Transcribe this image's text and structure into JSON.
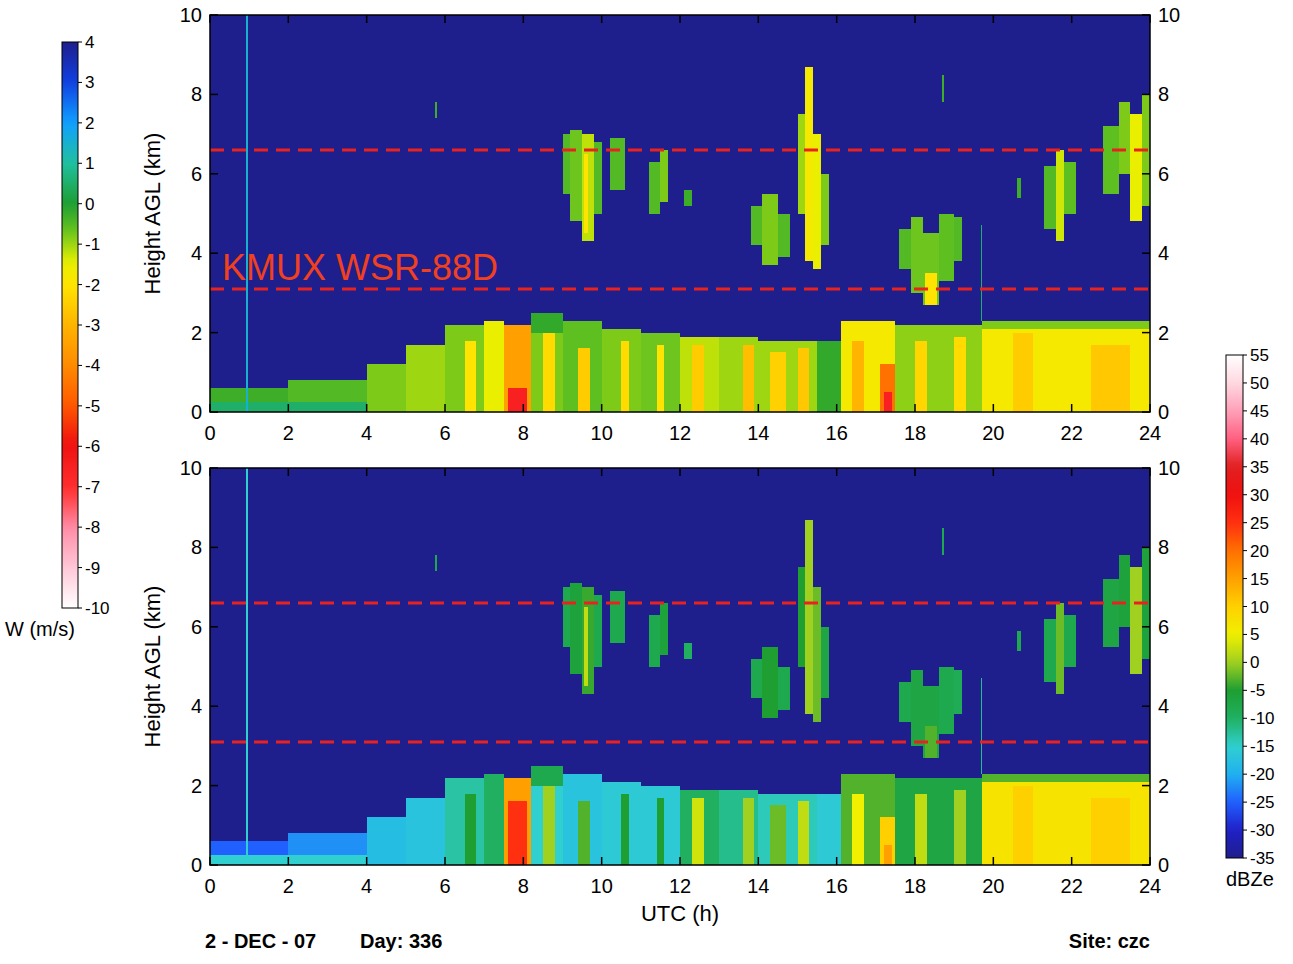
{
  "chart_data": [
    {
      "type": "heatmap",
      "ylabel": "Height AGL (km)",
      "xlim": [
        0,
        24
      ],
      "xticks": [
        0,
        2,
        4,
        6,
        8,
        10,
        12,
        14,
        16,
        18,
        20,
        22,
        24
      ],
      "ylim": [
        0,
        10
      ],
      "yticks": [
        0,
        2,
        4,
        6,
        8,
        10
      ],
      "annotations": [
        "KMUX WSR-88D"
      ],
      "reference_lines": [
        3.1,
        6.6
      ],
      "colorbar": {
        "label": "W (m/s)",
        "range": [
          -10,
          4
        ],
        "ticks": [
          4,
          3,
          2,
          1,
          0,
          -1,
          -2,
          -3,
          -4,
          -5,
          -6,
          -7,
          -8,
          -9,
          -10
        ]
      },
      "cells": [
        [
          0,
          4,
          0,
          0.25,
          0.5
        ],
        [
          0,
          2,
          0.25,
          0.6,
          -0.3
        ],
        [
          2,
          4,
          0.25,
          0.8,
          -0.5
        ],
        [
          4,
          5,
          0,
          1.2,
          -0.8
        ],
        [
          5,
          6,
          0,
          1.7,
          -1.0
        ],
        [
          6,
          7,
          0,
          2.2,
          -0.8
        ],
        [
          6.5,
          6.8,
          0,
          1.8,
          -2.0
        ],
        [
          7,
          7.5,
          0,
          2.3,
          -1.5
        ],
        [
          7.5,
          8.2,
          0,
          2.2,
          -3.5
        ],
        [
          7.6,
          8.1,
          0,
          0.6,
          -6.5
        ],
        [
          8.2,
          9,
          0,
          2.5,
          -0.8
        ],
        [
          8.2,
          9,
          2.0,
          2.5,
          -0.2
        ],
        [
          8.5,
          8.8,
          0,
          2.0,
          -2.2
        ],
        [
          9,
          10,
          0,
          2.3,
          -0.6
        ],
        [
          9.4,
          9.7,
          0,
          1.6,
          -2.5
        ],
        [
          10,
          11,
          0,
          2.1,
          -0.8
        ],
        [
          10.5,
          10.7,
          0,
          1.8,
          -2.2
        ],
        [
          11,
          12,
          0,
          2.0,
          -0.7
        ],
        [
          11.4,
          11.6,
          0,
          1.7,
          -2.0
        ],
        [
          12,
          13,
          0,
          1.9,
          -1.2
        ],
        [
          12.3,
          12.6,
          0,
          1.7,
          -2.5
        ],
        [
          13,
          14,
          0,
          1.9,
          -1.0
        ],
        [
          13.6,
          13.9,
          0,
          1.7,
          -2.8
        ],
        [
          14,
          15.5,
          0,
          1.8,
          -1.0
        ],
        [
          14.3,
          14.7,
          0,
          1.5,
          -2.4
        ],
        [
          15,
          15.3,
          0,
          1.6,
          -2.6
        ],
        [
          15.5,
          16.1,
          0,
          1.8,
          -0.2
        ],
        [
          16.1,
          17.5,
          0,
          2.3,
          -1.8
        ],
        [
          16.4,
          16.7,
          0,
          1.8,
          -3.0
        ],
        [
          17.1,
          17.5,
          0,
          1.2,
          -4.5
        ],
        [
          17.2,
          17.4,
          0,
          0.5,
          -6.5
        ],
        [
          17.5,
          19.7,
          0,
          2.2,
          -0.9
        ],
        [
          18,
          18.3,
          0,
          1.8,
          -2.3
        ],
        [
          19,
          19.3,
          0,
          1.9,
          -2.2
        ],
        [
          19.7,
          24,
          0,
          2.3,
          -1.8
        ],
        [
          20.5,
          21,
          0,
          2.0,
          -2.5
        ],
        [
          22.5,
          23.5,
          0,
          1.7,
          -2.6
        ],
        [
          19.7,
          24,
          2.1,
          2.3,
          -0.8
        ],
        [
          9,
          9.2,
          5.5,
          7.0,
          -0.5
        ],
        [
          9.2,
          9.5,
          4.8,
          7.1,
          -0.7
        ],
        [
          9.5,
          9.8,
          4.3,
          7.0,
          -1.2
        ],
        [
          9.8,
          10.0,
          5.0,
          6.8,
          -0.5
        ],
        [
          9.55,
          9.65,
          4.5,
          6.5,
          -2.0
        ],
        [
          10.2,
          10.6,
          5.6,
          6.9,
          -0.5
        ],
        [
          11.2,
          11.5,
          5.0,
          6.3,
          -0.5
        ],
        [
          11.5,
          11.7,
          5.3,
          6.6,
          -0.8
        ],
        [
          12.1,
          12.3,
          5.2,
          5.6,
          -0.3
        ],
        [
          13.8,
          14.1,
          4.2,
          5.2,
          -0.5
        ],
        [
          14.1,
          14.5,
          3.7,
          5.5,
          -0.8
        ],
        [
          14.5,
          14.8,
          3.9,
          5.0,
          -0.5
        ],
        [
          15,
          15.2,
          5.0,
          7.5,
          -1.0
        ],
        [
          15.2,
          15.4,
          3.8,
          8.7,
          -1.8
        ],
        [
          15.4,
          15.6,
          3.6,
          7.0,
          -1.5
        ],
        [
          15.6,
          15.8,
          4.2,
          6.0,
          -0.8
        ],
        [
          17.6,
          17.9,
          3.6,
          4.6,
          -0.5
        ],
        [
          17.9,
          18.2,
          3.0,
          4.9,
          -0.7
        ],
        [
          18.2,
          18.6,
          2.7,
          4.5,
          -0.7
        ],
        [
          18.6,
          19.0,
          3.3,
          5.0,
          -0.6
        ],
        [
          19.0,
          19.2,
          3.8,
          4.9,
          -0.5
        ],
        [
          18.25,
          18.55,
          2.7,
          3.5,
          -2.0
        ],
        [
          21.3,
          21.6,
          4.6,
          6.2,
          -0.5
        ],
        [
          21.6,
          21.8,
          4.3,
          6.6,
          -1.3
        ],
        [
          21.8,
          22.1,
          5.0,
          6.3,
          -0.6
        ],
        [
          22.8,
          23.2,
          5.5,
          7.2,
          -0.6
        ],
        [
          23.2,
          23.5,
          6.0,
          7.8,
          -0.8
        ],
        [
          23.5,
          23.8,
          4.8,
          7.5,
          -1.5
        ],
        [
          23.8,
          24,
          5.2,
          8.0,
          -0.8
        ],
        [
          5.75,
          5.8,
          7.4,
          7.8,
          -0.3
        ],
        [
          18.7,
          18.75,
          7.8,
          8.5,
          -0.3
        ],
        [
          20.6,
          20.7,
          5.4,
          5.9,
          -0.3
        ],
        [
          19.68,
          19.72,
          2.3,
          4.7,
          0.5
        ],
        [
          0.93,
          0.97,
          0,
          10,
          1.5
        ]
      ]
    },
    {
      "type": "heatmap",
      "ylabel": "Height AGL (km)",
      "xlabel": "UTC (h)",
      "xlim": [
        0,
        24
      ],
      "xticks": [
        0,
        2,
        4,
        6,
        8,
        10,
        12,
        14,
        16,
        18,
        20,
        22,
        24
      ],
      "ylim": [
        0,
        10
      ],
      "yticks": [
        0,
        2,
        4,
        6,
        8,
        10
      ],
      "reference_lines": [
        3.1,
        6.6
      ],
      "colorbar": {
        "label": "dBZe",
        "range": [
          -35,
          55
        ],
        "ticks": [
          55,
          50,
          45,
          40,
          35,
          30,
          25,
          20,
          15,
          10,
          5,
          0,
          -5,
          -10,
          -15,
          -20,
          -25,
          -30,
          -35
        ]
      },
      "footer": [
        "2 - DEC - 07",
        "Day: 336",
        "Site: czc"
      ],
      "cells": [
        [
          0,
          4,
          0,
          0.25,
          -15
        ],
        [
          0,
          2,
          0.25,
          0.6,
          -25
        ],
        [
          2,
          4,
          0.25,
          0.8,
          -22
        ],
        [
          4,
          5,
          0,
          1.2,
          -18
        ],
        [
          5,
          6,
          0,
          1.7,
          -17
        ],
        [
          6,
          7,
          0,
          2.2,
          -13
        ],
        [
          6.5,
          6.8,
          0,
          1.8,
          -5
        ],
        [
          7,
          7.5,
          0,
          2.3,
          -10
        ],
        [
          7.5,
          8.2,
          0,
          2.2,
          15
        ],
        [
          7.6,
          8.1,
          0,
          1.6,
          25
        ],
        [
          8.2,
          9,
          0,
          2.5,
          -15
        ],
        [
          8.2,
          9,
          2.0,
          2.5,
          -8
        ],
        [
          8.5,
          8.8,
          0,
          2.0,
          0
        ],
        [
          9,
          10,
          0,
          2.3,
          -17
        ],
        [
          9.4,
          9.7,
          0,
          1.6,
          -3
        ],
        [
          10,
          11,
          0,
          2.1,
          -16
        ],
        [
          10.5,
          10.7,
          0,
          1.8,
          -5
        ],
        [
          11,
          12,
          0,
          2.0,
          -16
        ],
        [
          11.4,
          11.6,
          0,
          1.7,
          -5
        ],
        [
          12,
          13,
          0,
          1.9,
          -10
        ],
        [
          12.3,
          12.6,
          0,
          1.7,
          3
        ],
        [
          13,
          14,
          0,
          1.9,
          -12
        ],
        [
          13.6,
          13.9,
          0,
          1.7,
          0
        ],
        [
          14,
          15.5,
          0,
          1.8,
          -14
        ],
        [
          14.3,
          14.7,
          0,
          1.5,
          -2
        ],
        [
          15,
          15.3,
          0,
          1.6,
          2
        ],
        [
          15.5,
          16.1,
          0,
          1.8,
          -16
        ],
        [
          16.1,
          17.5,
          0,
          2.3,
          -3
        ],
        [
          16.4,
          16.7,
          0,
          1.8,
          5
        ],
        [
          17.1,
          17.5,
          0,
          1.2,
          10
        ],
        [
          17.2,
          17.4,
          0,
          0.5,
          15
        ],
        [
          17.5,
          19.7,
          0,
          2.2,
          -7
        ],
        [
          18,
          18.3,
          0,
          1.8,
          2
        ],
        [
          19,
          19.3,
          0,
          1.9,
          0
        ],
        [
          19.7,
          24,
          0,
          2.3,
          7
        ],
        [
          20.5,
          21,
          0,
          2.0,
          10
        ],
        [
          22.5,
          23.5,
          0,
          1.7,
          10
        ],
        [
          19.7,
          24,
          2.1,
          2.3,
          -3
        ],
        [
          9,
          9.2,
          5.5,
          7.0,
          -8
        ],
        [
          9.2,
          9.5,
          4.8,
          7.1,
          -6
        ],
        [
          9.5,
          9.8,
          4.3,
          7.0,
          -4
        ],
        [
          9.8,
          10.0,
          5.0,
          6.8,
          -8
        ],
        [
          9.55,
          9.65,
          4.5,
          6.5,
          2
        ],
        [
          10.2,
          10.6,
          5.6,
          6.9,
          -8
        ],
        [
          11.2,
          11.5,
          5.0,
          6.3,
          -8
        ],
        [
          11.5,
          11.7,
          5.3,
          6.6,
          -6
        ],
        [
          12.1,
          12.3,
          5.2,
          5.6,
          -10
        ],
        [
          13.8,
          14.1,
          4.2,
          5.2,
          -8
        ],
        [
          14.1,
          14.5,
          3.7,
          5.5,
          -5
        ],
        [
          14.5,
          14.8,
          3.9,
          5.0,
          -8
        ],
        [
          15,
          15.2,
          5.0,
          7.5,
          -5
        ],
        [
          15.2,
          15.4,
          3.8,
          8.7,
          0
        ],
        [
          15.4,
          15.6,
          3.6,
          7.0,
          -2
        ],
        [
          15.6,
          15.8,
          4.2,
          6.0,
          -7
        ],
        [
          17.6,
          17.9,
          3.6,
          4.6,
          -8
        ],
        [
          17.9,
          18.2,
          3.0,
          4.9,
          -7
        ],
        [
          18.2,
          18.6,
          2.7,
          4.5,
          -7
        ],
        [
          18.6,
          19.0,
          3.3,
          5.0,
          -8
        ],
        [
          19.0,
          19.2,
          3.8,
          4.9,
          -9
        ],
        [
          18.25,
          18.55,
          2.7,
          3.5,
          -3
        ],
        [
          21.3,
          21.6,
          4.6,
          6.2,
          -8
        ],
        [
          21.6,
          21.8,
          4.3,
          6.6,
          -2
        ],
        [
          21.8,
          22.1,
          5.0,
          6.3,
          -8
        ],
        [
          22.8,
          23.2,
          5.5,
          7.2,
          -7
        ],
        [
          23.2,
          23.5,
          6.0,
          7.8,
          -6
        ],
        [
          23.5,
          23.8,
          4.8,
          7.5,
          0
        ],
        [
          23.8,
          24,
          5.2,
          8.0,
          -6
        ],
        [
          5.75,
          5.8,
          7.4,
          7.8,
          -8
        ],
        [
          18.7,
          18.75,
          7.8,
          8.5,
          -8
        ],
        [
          20.6,
          20.7,
          5.4,
          5.9,
          -8
        ],
        [
          19.68,
          19.72,
          2.3,
          4.7,
          -12
        ],
        [
          0.93,
          0.97,
          0,
          10,
          -15
        ]
      ]
    }
  ]
}
